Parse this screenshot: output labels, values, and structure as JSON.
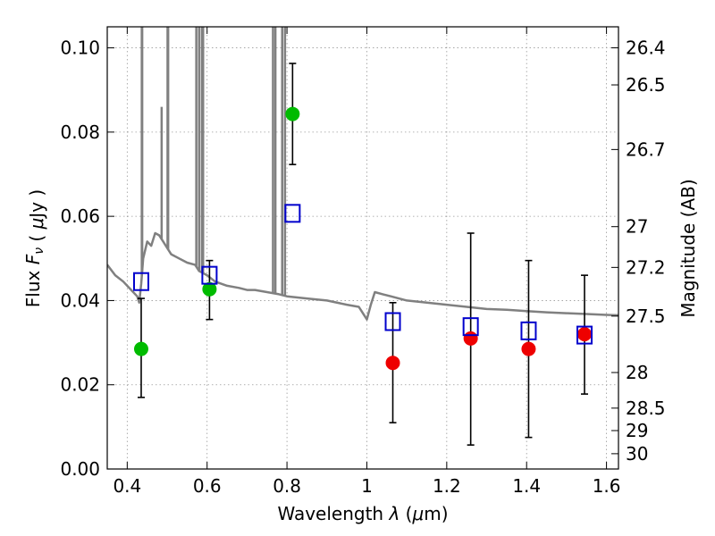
{
  "chart_data": {
    "type": "scatter",
    "xlabel": "Wavelength  λ (μm)",
    "ylabel": "Flux  F_ν  ( μJy )",
    "ylabel_right": "Magnitude (AB)",
    "xlim": [
      0.35,
      1.63
    ],
    "ylim": [
      0.0,
      0.105
    ],
    "grid": true,
    "x_ticks": [
      {
        "value": 0.4,
        "label": "0.4"
      },
      {
        "value": 0.6,
        "label": "0.6"
      },
      {
        "value": 0.8,
        "label": "0.8"
      },
      {
        "value": 1.0,
        "label": "1"
      },
      {
        "value": 1.2,
        "label": "1.2"
      },
      {
        "value": 1.4,
        "label": "1.4"
      },
      {
        "value": 1.6,
        "label": "1.6"
      }
    ],
    "y_ticks": [
      {
        "value": 0.0,
        "label": "0.00"
      },
      {
        "value": 0.02,
        "label": "0.02"
      },
      {
        "value": 0.04,
        "label": "0.04"
      },
      {
        "value": 0.06,
        "label": "0.06"
      },
      {
        "value": 0.08,
        "label": "0.08"
      },
      {
        "value": 0.1,
        "label": "0.10"
      }
    ],
    "y_ticks_right": [
      {
        "value": 26.4,
        "label": "26.4"
      },
      {
        "value": 26.5,
        "label": "26.5"
      },
      {
        "value": 26.7,
        "label": "26.7"
      },
      {
        "value": 27.0,
        "label": "27"
      },
      {
        "value": 27.2,
        "label": "27.2"
      },
      {
        "value": 27.5,
        "label": "27.5"
      },
      {
        "value": 28.0,
        "label": "28"
      },
      {
        "value": 28.5,
        "label": "28.5"
      },
      {
        "value": 29.0,
        "label": "29"
      },
      {
        "value": 30.0,
        "label": "30"
      }
    ],
    "sed_model": {
      "color": "#808080",
      "points": [
        [
          0.35,
          0.0485
        ],
        [
          0.37,
          0.046
        ],
        [
          0.39,
          0.0445
        ],
        [
          0.41,
          0.0425
        ],
        [
          0.425,
          0.041
        ],
        [
          0.43,
          0.0395
        ],
        [
          0.435,
          0.044
        ],
        [
          0.44,
          0.05
        ],
        [
          0.45,
          0.054
        ],
        [
          0.46,
          0.053
        ],
        [
          0.47,
          0.056
        ],
        [
          0.48,
          0.0555
        ],
        [
          0.49,
          0.054
        ],
        [
          0.5,
          0.0525
        ],
        [
          0.51,
          0.051
        ],
        [
          0.53,
          0.05
        ],
        [
          0.55,
          0.049
        ],
        [
          0.57,
          0.0485
        ],
        [
          0.58,
          0.047
        ],
        [
          0.6,
          0.046
        ],
        [
          0.62,
          0.0445
        ],
        [
          0.65,
          0.0435
        ],
        [
          0.68,
          0.043
        ],
        [
          0.7,
          0.0425
        ],
        [
          0.72,
          0.0425
        ],
        [
          0.75,
          0.042
        ],
        [
          0.78,
          0.0415
        ],
        [
          0.8,
          0.041
        ],
        [
          0.85,
          0.0405
        ],
        [
          0.9,
          0.04
        ],
        [
          0.95,
          0.039
        ],
        [
          0.98,
          0.0385
        ],
        [
          0.99,
          0.037
        ],
        [
          1.0,
          0.0355
        ],
        [
          1.01,
          0.039
        ],
        [
          1.02,
          0.042
        ],
        [
          1.04,
          0.0415
        ],
        [
          1.06,
          0.041
        ],
        [
          1.1,
          0.04
        ],
        [
          1.15,
          0.0395
        ],
        [
          1.2,
          0.039
        ],
        [
          1.25,
          0.0385
        ],
        [
          1.3,
          0.038
        ],
        [
          1.35,
          0.0378
        ],
        [
          1.4,
          0.0375
        ],
        [
          1.45,
          0.0372
        ],
        [
          1.5,
          0.037
        ],
        [
          1.55,
          0.0368
        ],
        [
          1.6,
          0.0366
        ],
        [
          1.63,
          0.0365
        ]
      ],
      "emission_lines": [
        {
          "x": 0.4365,
          "y": 0.108
        },
        {
          "x": 0.4375,
          "y": 0.108
        },
        {
          "x": 0.4862,
          "y": 0.086
        },
        {
          "x": 0.501,
          "y": 0.108
        },
        {
          "x": 0.5025,
          "y": 0.108
        },
        {
          "x": 0.573,
          "y": 0.108
        },
        {
          "x": 0.58,
          "y": 0.108
        },
        {
          "x": 0.587,
          "y": 0.108
        },
        {
          "x": 0.59,
          "y": 0.108
        },
        {
          "x": 0.765,
          "y": 0.108
        },
        {
          "x": 0.771,
          "y": 0.108
        },
        {
          "x": 0.788,
          "y": 0.108
        },
        {
          "x": 0.795,
          "y": 0.108
        }
      ]
    },
    "series": [
      {
        "marker": "circle",
        "color": "#00bb00",
        "points": [
          {
            "x": 0.435,
            "y": 0.0285,
            "err_low": 0.017,
            "err_high": 0.0405
          },
          {
            "x": 0.606,
            "y": 0.0427,
            "err_low": 0.0355,
            "err_high": 0.0495
          },
          {
            "x": 0.814,
            "y": 0.0843,
            "err_low": 0.0723,
            "err_high": 0.0963
          }
        ]
      },
      {
        "marker": "circle",
        "color": "#ee0000",
        "points": [
          {
            "x": 1.065,
            "y": 0.0252,
            "err_low": 0.011,
            "err_high": 0.0395
          },
          {
            "x": 1.26,
            "y": 0.031,
            "err_low": 0.0057,
            "err_high": 0.056
          },
          {
            "x": 1.405,
            "y": 0.0285,
            "err_low": 0.0075,
            "err_high": 0.0495
          },
          {
            "x": 1.545,
            "y": 0.032,
            "err_low": 0.0178,
            "err_high": 0.046
          }
        ]
      },
      {
        "marker": "open-square",
        "color": "#0000cc",
        "points": [
          {
            "x": 0.435,
            "y": 0.0445
          },
          {
            "x": 0.606,
            "y": 0.046
          },
          {
            "x": 0.814,
            "y": 0.0607
          },
          {
            "x": 1.065,
            "y": 0.035
          },
          {
            "x": 1.26,
            "y": 0.0338
          },
          {
            "x": 1.405,
            "y": 0.0328
          },
          {
            "x": 1.545,
            "y": 0.0318
          }
        ]
      }
    ]
  }
}
